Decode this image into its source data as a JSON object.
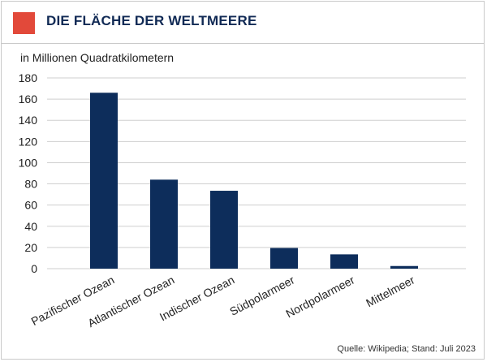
{
  "header": {
    "title": "DIE FLÄCHE DER WELTMEERE"
  },
  "footer": {
    "source": "Quelle: Wikipedia; Stand: Juli 2023"
  },
  "colors": {
    "accent": "#e2493a",
    "title": "#112a55",
    "bar": "#0d2d5b",
    "grid": "#cfcfcf"
  },
  "chart_data": {
    "type": "bar",
    "title": "DIE FLÄCHE DER WELTMEERE",
    "ylabel": "in Millionen Quadratkilometern",
    "xlabel": "",
    "categories": [
      "Pazifischer Ozean",
      "Atlantischer Ozean",
      "Indischer Ozean",
      "Südpolarmeer",
      "Nordpolarmeer",
      "Mittelmeer"
    ],
    "values": [
      166,
      84,
      73.5,
      19.5,
      13.5,
      2.5
    ],
    "ylim": [
      0,
      180
    ],
    "yticks": [
      0,
      20,
      40,
      60,
      80,
      100,
      120,
      140,
      160,
      180
    ],
    "grid": true,
    "legend": "none"
  }
}
